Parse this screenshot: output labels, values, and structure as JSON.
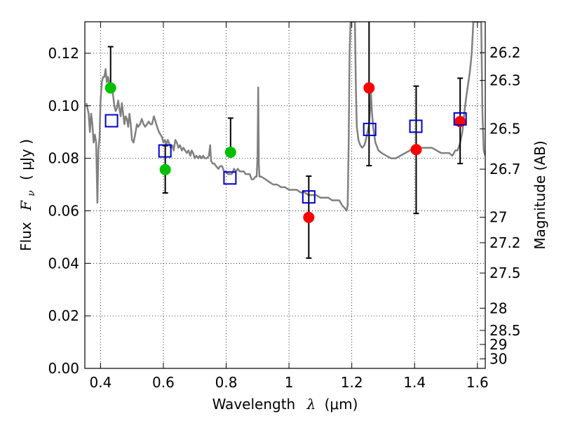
{
  "chart_data": {
    "type": "scatter",
    "title": "",
    "xlabel_text": "Wavelength",
    "xlabel_symbol": "λ",
    "xlabel_unit": "(μm)",
    "ylabel_text": "Flux",
    "ylabel_symbol_main": "F",
    "ylabel_symbol_sub": "ν",
    "ylabel_unit": "( μJy )",
    "y2label": "Magnitude (AB)",
    "xlim": [
      0.35,
      1.625
    ],
    "ylim": [
      0.0,
      0.132
    ],
    "grid": true,
    "x_ticks": [
      {
        "value": 0.4,
        "label": "0.4"
      },
      {
        "value": 0.6,
        "label": "0.6"
      },
      {
        "value": 0.8,
        "label": "0.8"
      },
      {
        "value": 1.0,
        "label": "1"
      },
      {
        "value": 1.2,
        "label": "1.2"
      },
      {
        "value": 1.4,
        "label": "1.4"
      },
      {
        "value": 1.6,
        "label": "1.6"
      }
    ],
    "y_ticks": [
      {
        "value": 0.0,
        "label": "0.00"
      },
      {
        "value": 0.02,
        "label": "0.02"
      },
      {
        "value": 0.04,
        "label": "0.04"
      },
      {
        "value": 0.06,
        "label": "0.06"
      },
      {
        "value": 0.08,
        "label": "0.08"
      },
      {
        "value": 0.1,
        "label": "0.10"
      },
      {
        "value": 0.12,
        "label": "0.12"
      }
    ],
    "mag_ticks": [
      {
        "value": 26.2,
        "label": "26.2"
      },
      {
        "value": 26.3,
        "label": "26.3"
      },
      {
        "value": 26.5,
        "label": "26.5"
      },
      {
        "value": 26.7,
        "label": "26.7"
      },
      {
        "value": 27.0,
        "label": "27"
      },
      {
        "value": 27.2,
        "label": "27.2"
      },
      {
        "value": 27.5,
        "label": "27.5"
      },
      {
        "value": 28.0,
        "label": "28"
      },
      {
        "value": 28.5,
        "label": "28.5"
      },
      {
        "value": 29.0,
        "label": "29"
      },
      {
        "value": 30.0,
        "label": "30"
      }
    ],
    "series": [
      {
        "name": "model spectrum",
        "kind": "line",
        "color": "#808080",
        "points": [
          [
            0.355,
            0.101
          ],
          [
            0.362,
            0.097
          ],
          [
            0.366,
            0.09
          ],
          [
            0.37,
            0.097
          ],
          [
            0.374,
            0.093
          ],
          [
            0.378,
            0.086
          ],
          [
            0.382,
            0.089
          ],
          [
            0.386,
            0.086
          ],
          [
            0.39,
            0.063
          ],
          [
            0.393,
            0.083
          ],
          [
            0.397,
            0.088
          ],
          [
            0.4,
            0.102
          ],
          [
            0.404,
            0.109
          ],
          [
            0.408,
            0.111
          ],
          [
            0.412,
            0.111
          ],
          [
            0.416,
            0.114
          ],
          [
            0.42,
            0.109
          ],
          [
            0.424,
            0.111
          ],
          [
            0.428,
            0.108
          ],
          [
            0.432,
            0.105
          ],
          [
            0.436,
            0.107
          ],
          [
            0.44,
            0.104
          ],
          [
            0.444,
            0.1
          ],
          [
            0.448,
            0.098
          ],
          [
            0.452,
            0.099
          ],
          [
            0.456,
            0.102
          ],
          [
            0.46,
            0.099
          ],
          [
            0.464,
            0.096
          ],
          [
            0.468,
            0.101
          ],
          [
            0.472,
            0.097
          ],
          [
            0.476,
            0.093
          ],
          [
            0.48,
            0.096
          ],
          [
            0.484,
            0.095
          ],
          [
            0.488,
            0.092
          ],
          [
            0.492,
            0.097
          ],
          [
            0.496,
            0.093
          ],
          [
            0.5,
            0.087
          ],
          [
            0.505,
            0.086
          ],
          [
            0.51,
            0.089
          ],
          [
            0.516,
            0.093
          ],
          [
            0.52,
            0.092
          ],
          [
            0.526,
            0.093
          ],
          [
            0.531,
            0.095
          ],
          [
            0.537,
            0.093
          ],
          [
            0.542,
            0.092
          ],
          [
            0.548,
            0.093
          ],
          [
            0.553,
            0.094
          ],
          [
            0.559,
            0.093
          ],
          [
            0.564,
            0.093
          ],
          [
            0.57,
            0.096
          ],
          [
            0.575,
            0.094
          ],
          [
            0.58,
            0.092
          ],
          [
            0.586,
            0.09
          ],
          [
            0.591,
            0.089
          ],
          [
            0.596,
            0.088
          ],
          [
            0.6,
            0.086
          ],
          [
            0.605,
            0.087
          ],
          [
            0.609,
            0.085
          ],
          [
            0.614,
            0.087
          ],
          [
            0.618,
            0.086
          ],
          [
            0.623,
            0.084
          ],
          [
            0.628,
            0.085
          ],
          [
            0.633,
            0.083
          ],
          [
            0.638,
            0.087
          ],
          [
            0.643,
            0.086
          ],
          [
            0.648,
            0.084
          ],
          [
            0.653,
            0.085
          ],
          [
            0.659,
            0.083
          ],
          [
            0.664,
            0.084
          ],
          [
            0.669,
            0.083
          ],
          [
            0.675,
            0.082
          ],
          [
            0.68,
            0.083
          ],
          [
            0.686,
            0.081
          ],
          [
            0.69,
            0.083
          ],
          [
            0.695,
            0.082
          ],
          [
            0.7,
            0.08
          ],
          [
            0.705,
            0.081
          ],
          [
            0.711,
            0.08
          ],
          [
            0.716,
            0.081
          ],
          [
            0.721,
            0.08
          ],
          [
            0.727,
            0.081
          ],
          [
            0.732,
            0.08
          ],
          [
            0.738,
            0.08
          ],
          [
            0.745,
            0.081
          ],
          [
            0.749,
            0.085
          ],
          [
            0.752,
            0.079
          ],
          [
            0.757,
            0.078
          ],
          [
            0.762,
            0.078
          ],
          [
            0.768,
            0.077
          ],
          [
            0.775,
            0.076
          ],
          [
            0.781,
            0.077
          ],
          [
            0.787,
            0.077
          ],
          [
            0.793,
            0.075
          ],
          [
            0.8,
            0.075
          ],
          [
            0.806,
            0.074
          ],
          [
            0.812,
            0.074
          ],
          [
            0.818,
            0.074
          ],
          [
            0.825,
            0.076
          ],
          [
            0.831,
            0.075
          ],
          [
            0.837,
            0.076
          ],
          [
            0.843,
            0.075
          ],
          [
            0.85,
            0.075
          ],
          [
            0.856,
            0.075
          ],
          [
            0.862,
            0.074
          ],
          [
            0.868,
            0.074
          ],
          [
            0.875,
            0.074
          ],
          [
            0.881,
            0.072
          ],
          [
            0.887,
            0.072
          ],
          [
            0.893,
            0.073
          ],
          [
            0.897,
            0.073
          ],
          [
            0.9,
            0.081
          ],
          [
            0.902,
            0.107
          ],
          [
            0.904,
            0.078
          ],
          [
            0.906,
            0.073
          ],
          [
            0.912,
            0.073
          ],
          [
            0.925,
            0.072
          ],
          [
            0.937,
            0.071
          ],
          [
            0.95,
            0.07
          ],
          [
            0.962,
            0.07
          ],
          [
            0.975,
            0.069
          ],
          [
            0.987,
            0.069
          ],
          [
            1.0,
            0.068
          ],
          [
            1.012,
            0.068
          ],
          [
            1.025,
            0.068
          ],
          [
            1.037,
            0.067
          ],
          [
            1.05,
            0.067
          ],
          [
            1.062,
            0.066
          ],
          [
            1.075,
            0.066
          ],
          [
            1.087,
            0.066
          ],
          [
            1.1,
            0.065
          ],
          [
            1.112,
            0.065
          ],
          [
            1.125,
            0.065
          ],
          [
            1.137,
            0.064
          ],
          [
            1.15,
            0.064
          ],
          [
            1.16,
            0.064
          ],
          [
            1.17,
            0.062
          ],
          [
            1.178,
            0.061
          ],
          [
            1.183,
            0.06
          ],
          [
            1.187,
            0.062
          ],
          [
            1.19,
            0.085
          ],
          [
            1.193,
            0.12
          ],
          [
            1.196,
            0.132
          ],
          [
            1.199,
            0.132
          ],
          [
            1.202,
            0.132
          ],
          [
            1.206,
            0.132
          ],
          [
            1.21,
            0.132
          ],
          [
            1.213,
            0.107
          ],
          [
            1.216,
            0.092
          ],
          [
            1.221,
            0.087
          ],
          [
            1.227,
            0.085
          ],
          [
            1.233,
            0.084
          ],
          [
            1.24,
            0.085
          ],
          [
            1.245,
            0.087
          ],
          [
            1.25,
            0.09
          ],
          [
            1.255,
            0.093
          ],
          [
            1.258,
            0.098
          ],
          [
            1.261,
            0.105
          ],
          [
            1.264,
            0.098
          ],
          [
            1.268,
            0.092
          ],
          [
            1.275,
            0.086
          ],
          [
            1.285,
            0.083
          ],
          [
            1.295,
            0.082
          ],
          [
            1.31,
            0.081
          ],
          [
            1.325,
            0.08
          ],
          [
            1.34,
            0.08
          ],
          [
            1.355,
            0.081
          ],
          [
            1.37,
            0.082
          ],
          [
            1.385,
            0.083
          ],
          [
            1.395,
            0.084
          ],
          [
            1.405,
            0.085
          ],
          [
            1.415,
            0.084
          ],
          [
            1.425,
            0.084
          ],
          [
            1.44,
            0.084
          ],
          [
            1.455,
            0.084
          ],
          [
            1.47,
            0.083
          ],
          [
            1.485,
            0.082
          ],
          [
            1.5,
            0.082
          ],
          [
            1.51,
            0.082
          ],
          [
            1.52,
            0.081
          ],
          [
            1.53,
            0.083
          ],
          [
            1.537,
            0.083
          ],
          [
            1.545,
            0.086
          ],
          [
            1.552,
            0.09
          ],
          [
            1.558,
            0.097
          ],
          [
            1.564,
            0.103
          ],
          [
            1.57,
            0.108
          ],
          [
            1.576,
            0.113
          ],
          [
            1.582,
            0.12
          ],
          [
            1.587,
            0.132
          ],
          [
            1.592,
            0.132
          ],
          [
            1.597,
            0.132
          ],
          [
            1.602,
            0.132
          ],
          [
            1.607,
            0.132
          ],
          [
            1.612,
            0.132
          ],
          [
            1.616,
            0.097
          ],
          [
            1.62,
            0.083
          ],
          [
            1.625,
            0.081
          ]
        ]
      },
      {
        "name": "observed (green)",
        "kind": "circle",
        "color": "#00c000",
        "points": [
          {
            "x": 0.432,
            "y": 0.1068
          },
          {
            "x": 0.606,
            "y": 0.0757
          },
          {
            "x": 0.814,
            "y": 0.0823
          }
        ]
      },
      {
        "name": "observed (red)",
        "kind": "circle",
        "color": "#ff0000",
        "points": [
          {
            "x": 1.063,
            "y": 0.0575
          },
          {
            "x": 1.255,
            "y": 0.1068
          },
          {
            "x": 1.405,
            "y": 0.0833
          },
          {
            "x": 1.545,
            "y": 0.094
          }
        ]
      },
      {
        "name": "model photometry",
        "kind": "square",
        "color": "#0000cc",
        "points": [
          {
            "x": 0.435,
            "y": 0.0943,
            "yerr_low": 0.0,
            "yerr_high": 0.0
          },
          {
            "x": 0.605,
            "y": 0.0828,
            "yerr_low": 0.0,
            "yerr_high": 0.0
          },
          {
            "x": 0.812,
            "y": 0.0725,
            "yerr_low": 0.0,
            "yerr_high": 0.0
          },
          {
            "x": 1.063,
            "y": 0.0653,
            "yerr_low": 0.0,
            "yerr_high": 0.0
          },
          {
            "x": 1.257,
            "y": 0.091,
            "yerr_low": 0.0,
            "yerr_high": 0.0
          },
          {
            "x": 1.404,
            "y": 0.0922,
            "yerr_low": 0.0,
            "yerr_high": 0.0
          },
          {
            "x": 1.545,
            "y": 0.095,
            "yerr_low": 0.0,
            "yerr_high": 0.0
          }
        ]
      }
    ],
    "error_bars": [
      {
        "x": 0.432,
        "low": 0.1068,
        "high": 0.1225
      },
      {
        "x": 0.606,
        "low": 0.0668,
        "high": 0.0848
      },
      {
        "x": 0.814,
        "low": 0.0823,
        "high": 0.0953
      },
      {
        "x": 1.063,
        "low": 0.042,
        "high": 0.0732
      },
      {
        "x": 1.255,
        "low": 0.0772,
        "high": 0.132
      },
      {
        "x": 1.405,
        "low": 0.059,
        "high": 0.1075
      },
      {
        "x": 1.545,
        "low": 0.078,
        "high": 0.1105
      }
    ]
  }
}
